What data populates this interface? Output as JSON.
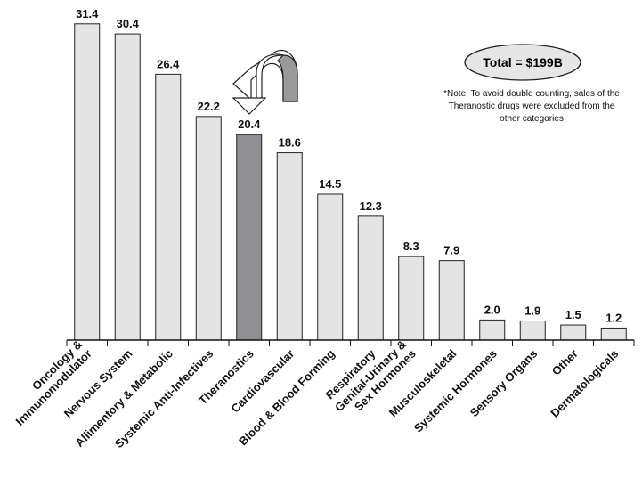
{
  "chart_data": {
    "type": "bar",
    "categories": [
      [
        "Oncology &",
        "Immunomodulator"
      ],
      [
        "Nervous System"
      ],
      [
        "Allimentory & Metabolic"
      ],
      [
        "Systemic Anti-Infectives"
      ],
      [
        "Theranostics"
      ],
      [
        "Cardiovascular"
      ],
      [
        "Blood & Blood Forming"
      ],
      [
        "Respiratory"
      ],
      [
        "Genital-Urinary &",
        "Sex Hormones"
      ],
      [
        "Musculoskeletal"
      ],
      [
        "Systemic Hormones"
      ],
      [
        "Sensory Organs"
      ],
      [
        "Other"
      ],
      [
        "Dermatologicals"
      ]
    ],
    "values": [
      31.4,
      30.4,
      26.4,
      22.2,
      20.4,
      18.6,
      14.5,
      12.3,
      8.3,
      7.9,
      2.0,
      1.9,
      1.5,
      1.2
    ],
    "value_labels": [
      "31.4",
      "30.4",
      "26.4",
      "22.2",
      "20.4",
      "18.6",
      "14.5",
      "12.3",
      "8.3",
      "7.9",
      "2.0",
      "1.9",
      "1.5",
      "1.2"
    ],
    "highlight_index": 4,
    "title": "",
    "xlabel": "",
    "ylabel": "",
    "ylim": [
      0,
      32
    ],
    "grid": false,
    "colors": {
      "bar": "#e4e4e4",
      "highlight": "#8e8e93",
      "edge": "#222222",
      "arrow": "#9a9a9a"
    }
  },
  "annotations": {
    "total": "Total = $199B",
    "note": [
      "*Note: To avoid double counting, sales of the",
      "Theranostic drugs were excluded from the",
      "other categories"
    ]
  }
}
